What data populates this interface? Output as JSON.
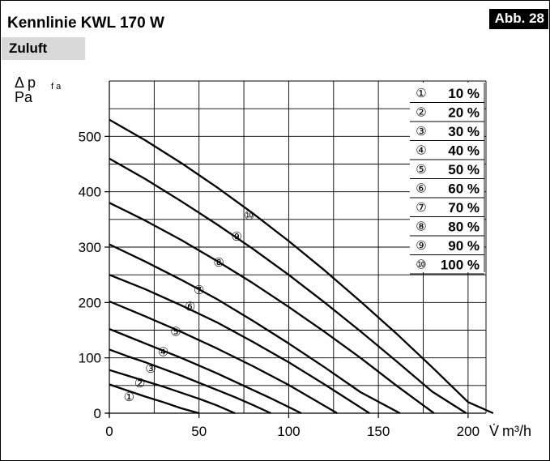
{
  "header": {
    "title": "Kennlinie KWL 170 W",
    "badge": "Abb. 28",
    "subtitle": "Zuluft"
  },
  "chart_data": {
    "type": "line",
    "title": "Kennlinie KWL 170 W",
    "subtitle": "Zuluft",
    "ylabel_symbol": "Δ p",
    "ylabel_subscript": "f a",
    "ylabel_unit": "Pa",
    "xlabel_symbol": "V̇",
    "xlabel_unit": "m³/h",
    "xlim": [
      0,
      210
    ],
    "ylim": [
      0,
      600
    ],
    "x_ticks": [
      0,
      50,
      100,
      150,
      200
    ],
    "y_ticks": [
      0,
      100,
      200,
      300,
      400,
      500
    ],
    "grid": true,
    "legend_position": "top-right",
    "series": [
      {
        "name": "10 %",
        "marker": "①",
        "marker_at": [
          11,
          22
        ],
        "x": [
          0,
          10,
          20,
          30,
          40,
          50
        ],
        "y": [
          52,
          41,
          30,
          20,
          9,
          0
        ]
      },
      {
        "name": "20 %",
        "marker": "②",
        "marker_at": [
          17,
          47
        ],
        "x": [
          0,
          10,
          20,
          30,
          40,
          50,
          60,
          70
        ],
        "y": [
          78,
          68,
          58,
          48,
          37,
          26,
          14,
          0
        ]
      },
      {
        "name": "30 %",
        "marker": "③",
        "marker_at": [
          23,
          73
        ],
        "x": [
          0,
          10,
          20,
          30,
          40,
          50,
          60,
          70,
          80,
          90
        ],
        "y": [
          115,
          103,
          92,
          80,
          68,
          55,
          42,
          29,
          15,
          0
        ]
      },
      {
        "name": "40 %",
        "marker": "④",
        "marker_at": [
          30,
          103
        ],
        "x": [
          0,
          10,
          20,
          30,
          40,
          50,
          60,
          70,
          80,
          90,
          107
        ],
        "y": [
          152,
          139,
          126,
          113,
          100,
          86,
          72,
          57,
          42,
          27,
          0
        ]
      },
      {
        "name": "50 %",
        "marker": "⑤",
        "marker_at": [
          37,
          140
        ],
        "x": [
          0,
          20,
          40,
          60,
          80,
          100,
          127
        ],
        "y": [
          202,
          175,
          147,
          117,
          85,
          51,
          0
        ]
      },
      {
        "name": "60 %",
        "marker": "⑥",
        "marker_at": [
          45,
          185
        ],
        "x": [
          0,
          20,
          40,
          60,
          80,
          100,
          120,
          145
        ],
        "y": [
          250,
          224,
          195,
          164,
          129,
          92,
          52,
          0
        ]
      },
      {
        "name": "70 %",
        "marker": "⑦",
        "marker_at": [
          50,
          215
        ],
        "x": [
          0,
          20,
          40,
          60,
          80,
          100,
          120,
          140,
          162
        ],
        "y": [
          305,
          274,
          241,
          206,
          167,
          126,
          83,
          38,
          0
        ]
      },
      {
        "name": "80 %",
        "marker": "⑧",
        "marker_at": [
          61,
          265
        ],
        "x": [
          0,
          20,
          40,
          60,
          80,
          100,
          120,
          140,
          160,
          181
        ],
        "y": [
          380,
          348,
          313,
          275,
          235,
          192,
          147,
          100,
          50,
          0
        ]
      },
      {
        "name": "90 %",
        "marker": "⑨",
        "marker_at": [
          71,
          312
        ],
        "x": [
          0,
          20,
          40,
          60,
          80,
          100,
          120,
          140,
          160,
          180,
          199
        ],
        "y": [
          460,
          423,
          383,
          341,
          297,
          250,
          200,
          148,
          94,
          39,
          0
        ]
      },
      {
        "name": "100 %",
        "marker": "⑩",
        "marker_at": [
          78,
          350
        ],
        "x": [
          0,
          20,
          40,
          60,
          80,
          100,
          120,
          140,
          160,
          180,
          200,
          214
        ],
        "y": [
          530,
          493,
          452,
          408,
          361,
          311,
          258,
          202,
          144,
          83,
          20,
          0
        ]
      }
    ]
  }
}
